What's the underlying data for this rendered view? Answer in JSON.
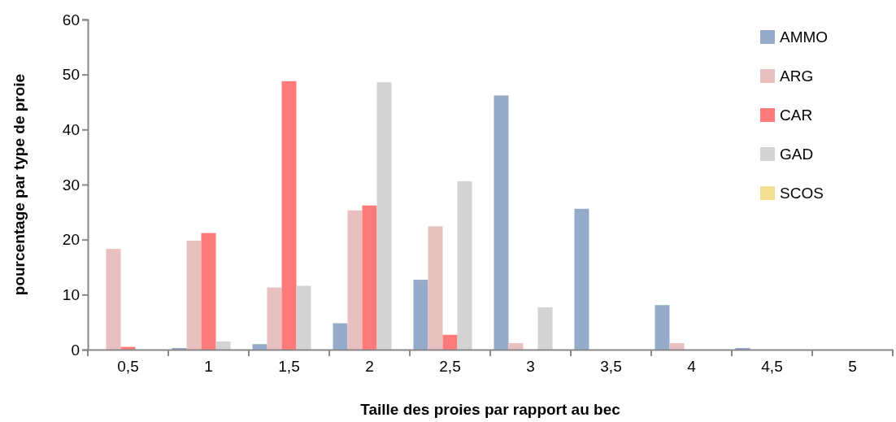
{
  "chart_data": {
    "type": "bar",
    "xlabel": "Taille des proies par rapport au bec",
    "ylabel": "pourcentage par type de proie",
    "categories": [
      "0,5",
      "1",
      "1,5",
      "2",
      "2,5",
      "3",
      "3,5",
      "4",
      "4,5",
      "5"
    ],
    "series": [
      {
        "name": "AMMO",
        "color": "#95abc9",
        "values": [
          0,
          0.3,
          1,
          4.8,
          12.7,
          46.2,
          25.6,
          8.1,
          0.3,
          0
        ]
      },
      {
        "name": "ARG",
        "color": "#e8c0c0",
        "values": [
          18.3,
          19.8,
          11.3,
          25.3,
          22.4,
          1.2,
          0,
          1.2,
          0,
          0
        ]
      },
      {
        "name": "CAR",
        "color": "#ff7a7a",
        "values": [
          0.5,
          21.2,
          48.8,
          26.2,
          2.7,
          0,
          0,
          0,
          0,
          0
        ]
      },
      {
        "name": "GAD",
        "color": "#d3d3d3",
        "values": [
          0,
          1.5,
          11.6,
          48.6,
          30.6,
          7.7,
          0,
          0,
          0,
          0
        ]
      },
      {
        "name": "SCOS",
        "color": "#f2e092",
        "values": [
          0,
          0,
          0,
          0,
          0,
          0,
          0,
          0,
          0,
          0
        ]
      }
    ],
    "ylim": [
      0,
      60
    ],
    "yticks": [
      0,
      10,
      20,
      30,
      40,
      50,
      60
    ],
    "grid": false,
    "legend": "top right"
  }
}
